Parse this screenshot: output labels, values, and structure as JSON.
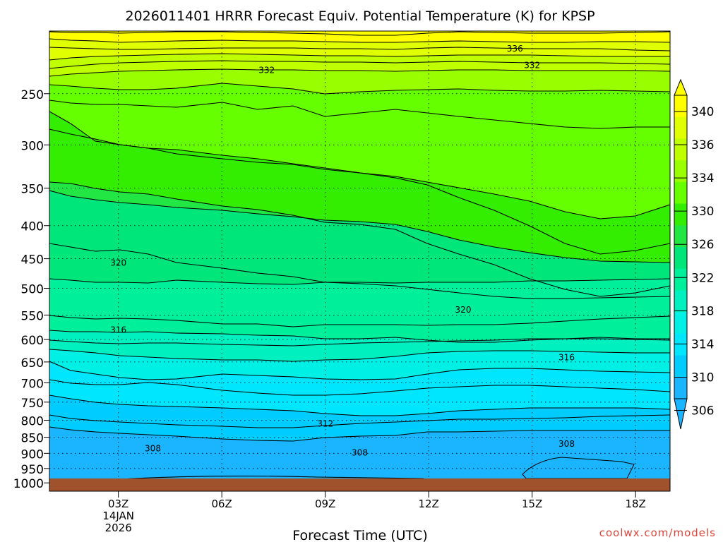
{
  "chart_data": {
    "type": "contour",
    "title": "2026011401 HRRR Forecast Equiv. Potential Temperature (K) for KPSP",
    "xlabel": "Forecast Time (UTC)",
    "ylabel": "",
    "credit": "coolwx.com/models",
    "x_range_hours": [
      1,
      19
    ],
    "x_ticks": [
      {
        "hour": 3,
        "label": "03Z",
        "sub": [
          "14JAN",
          "2026"
        ]
      },
      {
        "hour": 6,
        "label": "06Z"
      },
      {
        "hour": 9,
        "label": "09Z"
      },
      {
        "hour": 12,
        "label": "12Z"
      },
      {
        "hour": 15,
        "label": "15Z"
      },
      {
        "hour": 18,
        "label": "18Z"
      }
    ],
    "y_range_hpa": [
      1030,
      200
    ],
    "y_ticks": [
      "250",
      "300",
      "350",
      "400",
      "450",
      "500",
      "550",
      "600",
      "650",
      "700",
      "750",
      "800",
      "850",
      "900",
      "950",
      "1000"
    ],
    "colorbar": {
      "labels": [
        "340",
        "336",
        "334",
        "330",
        "326",
        "322",
        "318",
        "314",
        "310",
        "306"
      ],
      "band_colors": [
        "#ffff00",
        "#e0ff00",
        "#bfff00",
        "#99ff00",
        "#66ff00",
        "#33ee00",
        "#22e644",
        "#00e67a",
        "#00ef9a",
        "#00f0c0",
        "#00f0e6",
        "#00e6ff",
        "#00ccff",
        "#1ab4ff"
      ]
    },
    "surface_color": "#a0522d",
    "contour_labels": [
      {
        "text": "336",
        "hour": 14.5,
        "hpa": 213
      },
      {
        "text": "332",
        "hour": 7.3,
        "hpa": 230
      },
      {
        "text": "332",
        "hour": 15.0,
        "hpa": 226
      },
      {
        "text": "320",
        "hour": 3.0,
        "hpa": 457
      },
      {
        "text": "320",
        "hour": 13.0,
        "hpa": 540
      },
      {
        "text": "316",
        "hour": 3.0,
        "hpa": 580
      },
      {
        "text": "316",
        "hour": 16.0,
        "hpa": 640
      },
      {
        "text": "312",
        "hour": 9.0,
        "hpa": 810
      },
      {
        "text": "308",
        "hour": 4.0,
        "hpa": 885
      },
      {
        "text": "308",
        "hour": 10.0,
        "hpa": 898
      },
      {
        "text": "308",
        "hour": 16.0,
        "hpa": 870
      }
    ]
  }
}
